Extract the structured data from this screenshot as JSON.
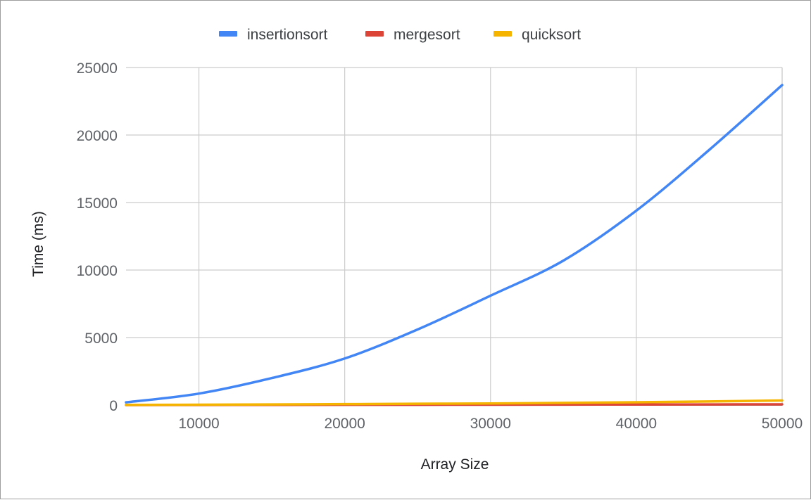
{
  "chart_data": {
    "type": "line",
    "title": "",
    "xlabel": "Array Size",
    "ylabel": "Time (ms)",
    "xlim": [
      5000,
      50000
    ],
    "ylim": [
      0,
      25000
    ],
    "x_ticks": [
      10000,
      20000,
      30000,
      40000,
      50000
    ],
    "y_ticks": [
      0,
      5000,
      10000,
      15000,
      20000,
      25000
    ],
    "x_tick_labels": [
      "10000",
      "20000",
      "30000",
      "40000",
      "50000"
    ],
    "y_tick_labels": [
      "0",
      "5000",
      "10000",
      "15000",
      "20000",
      "25000"
    ],
    "grid": true,
    "legend_position": "top",
    "x": [
      5000,
      10000,
      15000,
      20000,
      25000,
      30000,
      35000,
      40000,
      45000,
      50000
    ],
    "series": [
      {
        "name": "insertionsort",
        "color": "#4285f4",
        "values": [
          200,
          850,
          2000,
          3450,
          5600,
          8100,
          10700,
          14400,
          18900,
          23700
        ]
      },
      {
        "name": "mergesort",
        "color": "#db4437",
        "values": [
          3,
          8,
          12,
          17,
          22,
          28,
          34,
          40,
          47,
          55
        ]
      },
      {
        "name": "quicksort",
        "color": "#f4b400",
        "values": [
          10,
          25,
          45,
          70,
          95,
          120,
          160,
          210,
          270,
          340
        ]
      }
    ]
  }
}
